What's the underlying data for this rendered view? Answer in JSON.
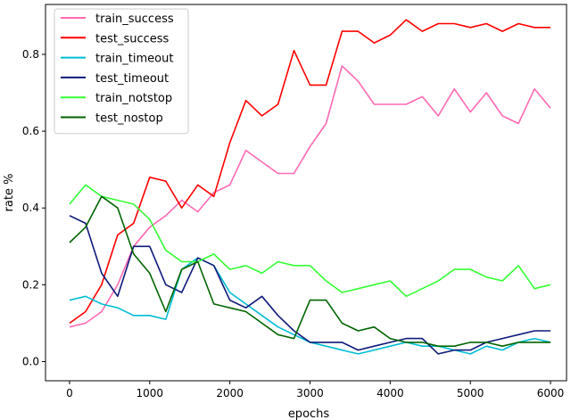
{
  "chart_data": {
    "type": "line",
    "title": "",
    "xlabel": "epochs",
    "ylabel": "rate %",
    "xlim": [
      -300,
      6200
    ],
    "ylim": [
      -0.05,
      0.93
    ],
    "xticks": [
      0,
      1000,
      2000,
      3000,
      4000,
      5000,
      6000
    ],
    "yticks": [
      0.0,
      0.2,
      0.4,
      0.6,
      0.8
    ],
    "xtick_labels": [
      "0",
      "1000",
      "2000",
      "3000",
      "4000",
      "5000",
      "6000"
    ],
    "ytick_labels": [
      "0.0",
      "0.2",
      "0.4",
      "0.6",
      "0.8"
    ],
    "grid": false,
    "legend_position": "top-left",
    "series": [
      {
        "name": "train_success",
        "color": "#ff69b4",
        "x": [
          0,
          200,
          400,
          600,
          800,
          1000,
          1200,
          1400,
          1600,
          1800,
          2000,
          2200,
          2400,
          2600,
          2800,
          3000,
          3200,
          3400,
          3600,
          3800,
          4000,
          4200,
          4400,
          4600,
          4800,
          5000,
          5200,
          5400,
          5600,
          5800,
          6000
        ],
        "y": [
          0.09,
          0.1,
          0.13,
          0.2,
          0.3,
          0.35,
          0.38,
          0.42,
          0.39,
          0.44,
          0.46,
          0.55,
          0.52,
          0.49,
          0.49,
          0.56,
          0.62,
          0.77,
          0.73,
          0.67,
          0.67,
          0.67,
          0.69,
          0.64,
          0.71,
          0.65,
          0.7,
          0.64,
          0.62,
          0.71,
          0.66
        ]
      },
      {
        "name": "test_success",
        "color": "#ff0000",
        "x": [
          0,
          200,
          400,
          600,
          800,
          1000,
          1200,
          1400,
          1600,
          1800,
          2000,
          2200,
          2400,
          2600,
          2800,
          3000,
          3200,
          3400,
          3600,
          3800,
          4000,
          4200,
          4400,
          4600,
          4800,
          5000,
          5200,
          5400,
          5600,
          5800,
          6000
        ],
        "y": [
          0.1,
          0.13,
          0.2,
          0.33,
          0.36,
          0.48,
          0.47,
          0.4,
          0.46,
          0.43,
          0.57,
          0.68,
          0.64,
          0.67,
          0.81,
          0.72,
          0.72,
          0.86,
          0.86,
          0.83,
          0.85,
          0.89,
          0.86,
          0.88,
          0.88,
          0.87,
          0.88,
          0.86,
          0.88,
          0.87,
          0.87
        ]
      },
      {
        "name": "train_timeout",
        "color": "#00bcd4",
        "x": [
          0,
          200,
          400,
          600,
          800,
          1000,
          1200,
          1400,
          1600,
          1800,
          2000,
          2200,
          2400,
          2600,
          2800,
          3000,
          3200,
          3400,
          3600,
          3800,
          4000,
          4200,
          4400,
          4600,
          4800,
          5000,
          5200,
          5400,
          5600,
          5800,
          6000
        ],
        "y": [
          0.16,
          0.17,
          0.15,
          0.14,
          0.12,
          0.12,
          0.11,
          0.24,
          0.27,
          0.25,
          0.18,
          0.15,
          0.12,
          0.09,
          0.07,
          0.05,
          0.04,
          0.03,
          0.02,
          0.03,
          0.04,
          0.05,
          0.04,
          0.04,
          0.03,
          0.02,
          0.04,
          0.03,
          0.05,
          0.06,
          0.05
        ]
      },
      {
        "name": "test_timeout",
        "color": "#0d1a7a",
        "x": [
          0,
          200,
          400,
          600,
          800,
          1000,
          1200,
          1400,
          1600,
          1800,
          2000,
          2200,
          2400,
          2600,
          2800,
          3000,
          3200,
          3400,
          3600,
          3800,
          4000,
          4200,
          4400,
          4600,
          4800,
          5000,
          5200,
          5400,
          5600,
          5800,
          6000
        ],
        "y": [
          0.38,
          0.36,
          0.23,
          0.17,
          0.3,
          0.3,
          0.2,
          0.18,
          0.27,
          0.25,
          0.16,
          0.14,
          0.17,
          0.12,
          0.08,
          0.05,
          0.05,
          0.05,
          0.03,
          0.04,
          0.05,
          0.06,
          0.06,
          0.02,
          0.03,
          0.03,
          0.05,
          0.06,
          0.07,
          0.08,
          0.08
        ]
      },
      {
        "name": "train_notstop",
        "color": "#33ff33",
        "x": [
          0,
          200,
          400,
          600,
          800,
          1000,
          1200,
          1400,
          1600,
          1800,
          2000,
          2200,
          2400,
          2600,
          2800,
          3000,
          3200,
          3400,
          3600,
          3800,
          4000,
          4200,
          4400,
          4600,
          4800,
          5000,
          5200,
          5400,
          5600,
          5800,
          6000
        ],
        "y": [
          0.41,
          0.46,
          0.43,
          0.42,
          0.41,
          0.37,
          0.29,
          0.26,
          0.26,
          0.28,
          0.24,
          0.25,
          0.23,
          0.26,
          0.25,
          0.25,
          0.21,
          0.18,
          0.19,
          0.2,
          0.21,
          0.17,
          0.19,
          0.21,
          0.24,
          0.24,
          0.22,
          0.21,
          0.25,
          0.19,
          0.2
        ]
      },
      {
        "name": "test_nostop",
        "color": "#006400",
        "x": [
          0,
          200,
          400,
          600,
          800,
          1000,
          1200,
          1400,
          1600,
          1800,
          2000,
          2200,
          2400,
          2600,
          2800,
          3000,
          3200,
          3400,
          3600,
          3800,
          4000,
          4200,
          4400,
          4600,
          4800,
          5000,
          5200,
          5400,
          5600,
          5800,
          6000
        ],
        "y": [
          0.31,
          0.35,
          0.43,
          0.4,
          0.28,
          0.23,
          0.13,
          0.24,
          0.26,
          0.15,
          0.14,
          0.13,
          0.1,
          0.07,
          0.06,
          0.16,
          0.16,
          0.1,
          0.08,
          0.09,
          0.06,
          0.05,
          0.05,
          0.04,
          0.04,
          0.05,
          0.05,
          0.04,
          0.05,
          0.05,
          0.05
        ]
      }
    ]
  }
}
